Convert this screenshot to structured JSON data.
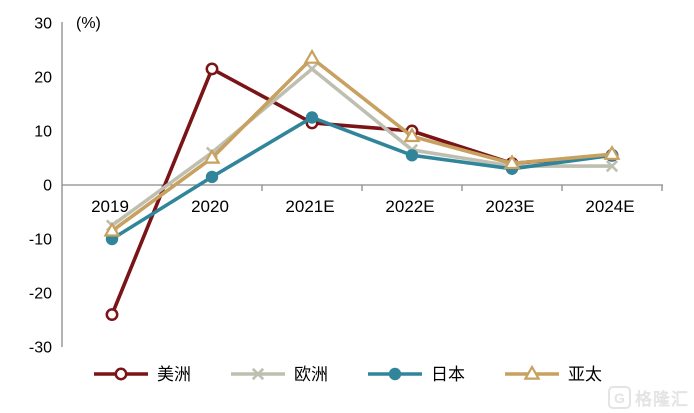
{
  "chart_data": {
    "type": "line",
    "unit_label": "(%)",
    "categories": [
      "2019",
      "2020",
      "2021E",
      "2022E",
      "2023E",
      "2024E"
    ],
    "series": [
      {
        "key": "americas",
        "name": "美洲",
        "color": "#7A1417",
        "marker": "open-circle",
        "values": [
          -24,
          21.5,
          11.5,
          10,
          4,
          5.5
        ]
      },
      {
        "key": "europe",
        "name": "欧洲",
        "color": "#BFBFB1",
        "marker": "x",
        "values": [
          -7.5,
          6,
          21.5,
          6.5,
          3.5,
          3.5
        ]
      },
      {
        "key": "japan",
        "name": "日本",
        "color": "#31859B",
        "marker": "filled-circle",
        "values": [
          -10,
          1.5,
          12.5,
          5.5,
          3,
          5.5
        ]
      },
      {
        "key": "asia-pacific",
        "name": "亚太",
        "color": "#C7A15F",
        "marker": "open-triangle",
        "values": [
          -8.5,
          5,
          23.5,
          9,
          4,
          5.7
        ]
      }
    ],
    "y_axis": {
      "min": -30,
      "max": 30,
      "step": 10,
      "ticks": [
        30,
        20,
        10,
        0,
        -10,
        -20,
        -30
      ]
    },
    "x_axis": {
      "labels_at_zero_line": true
    },
    "grid": false,
    "legend_position": "bottom",
    "axis_color": "#8a8a8a",
    "text_color": "#000000"
  },
  "watermark": {
    "text": "格隆汇",
    "icon_letter": "G"
  }
}
